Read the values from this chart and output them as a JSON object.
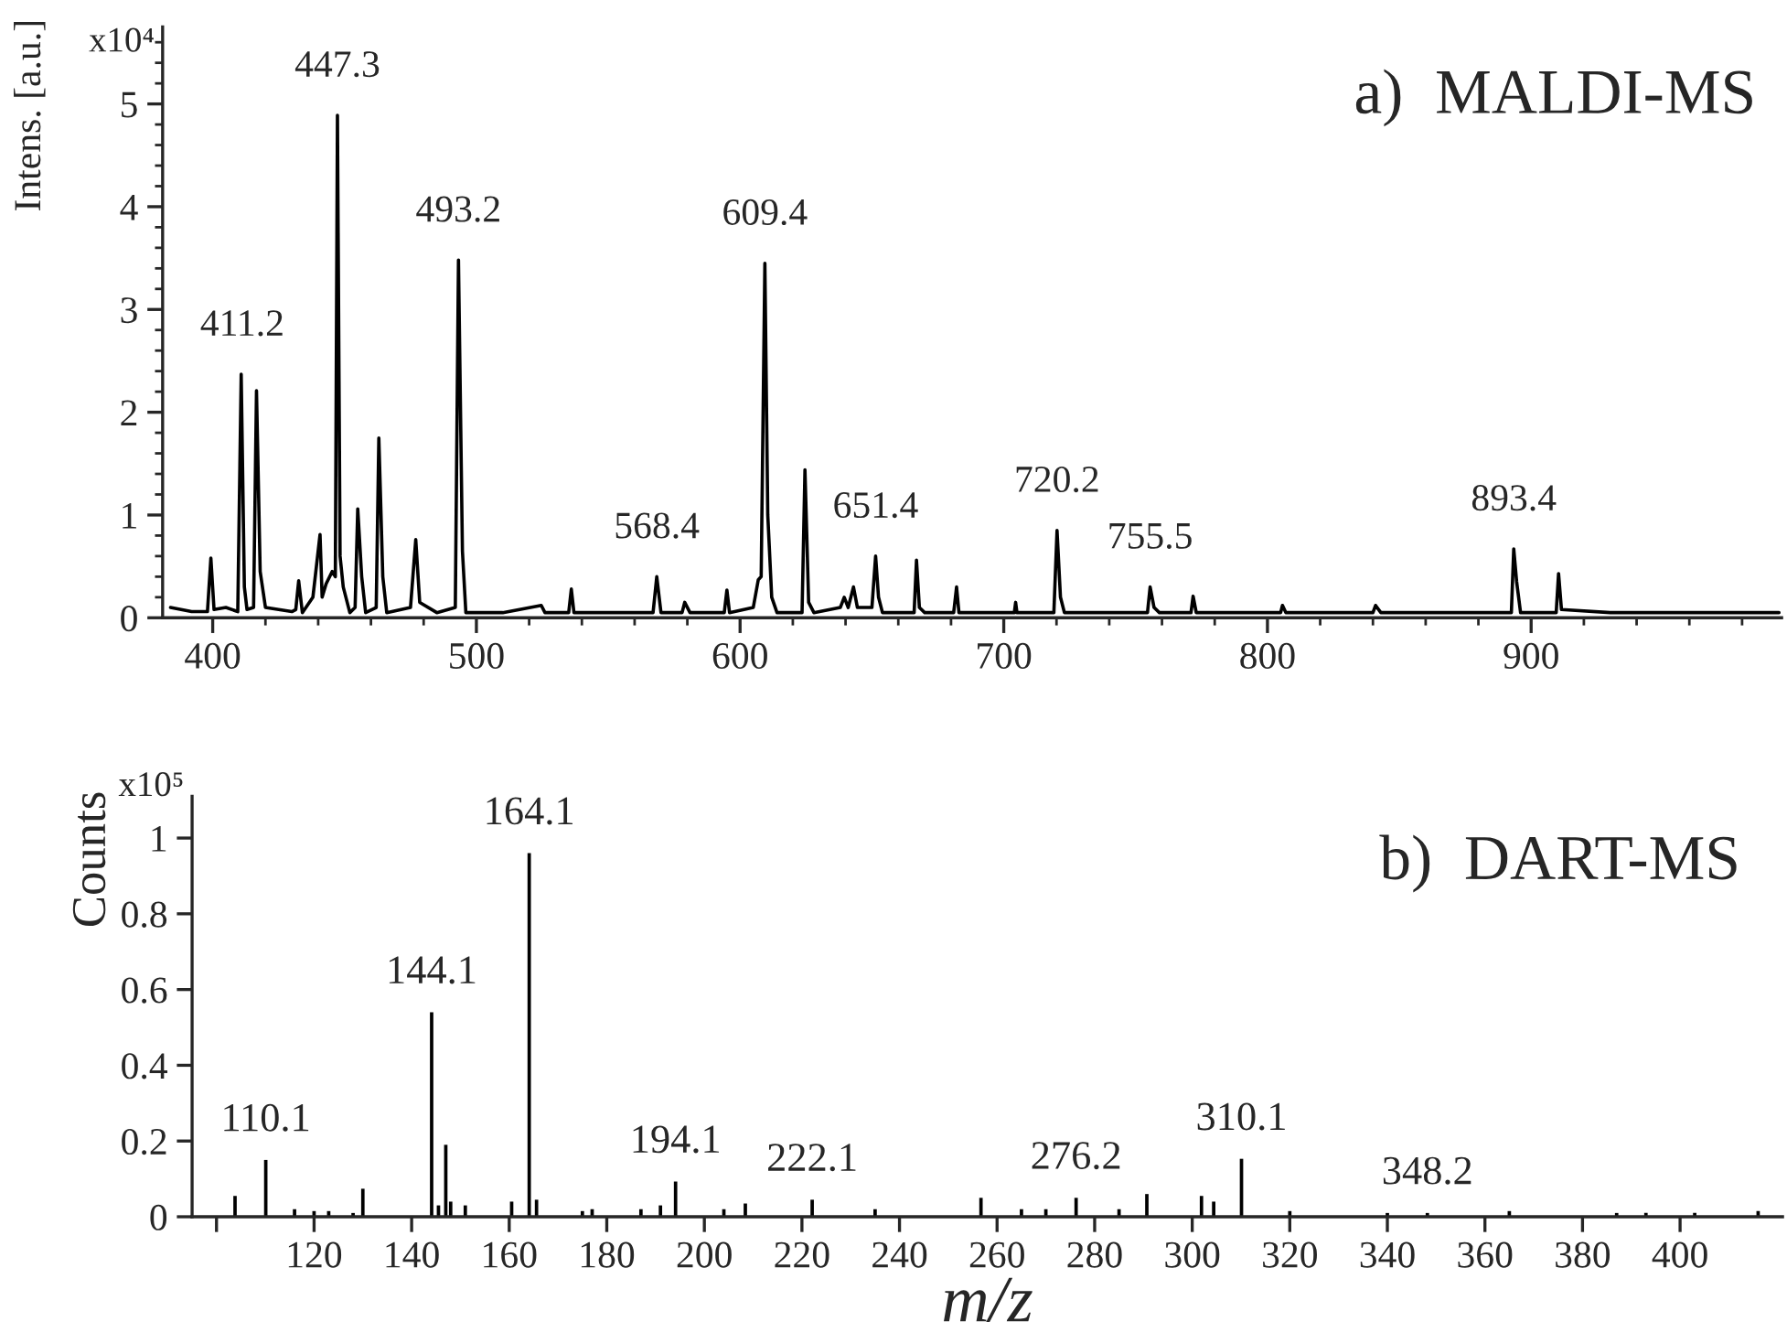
{
  "chart_data": [
    {
      "type": "line",
      "title": "a)  MALDI-MS",
      "ylabel": "Intens. [a.u.]",
      "color": "#000000",
      "x": [
        384,
        392,
        398,
        399.3,
        400.5,
        405,
        409.5,
        410.8,
        412,
        413,
        415.5,
        416.6,
        418,
        420,
        430,
        431.5,
        432.6,
        434,
        438,
        440.7,
        441.5,
        443,
        445.3,
        446.5,
        447.3,
        448.3,
        449.5,
        452,
        454,
        455,
        456.5,
        458,
        462,
        463,
        464.5,
        466,
        475,
        477,
        478.5,
        485,
        492,
        493.2,
        494.7,
        496,
        510,
        524.6,
        526,
        535,
        536,
        537,
        555,
        567,
        568.4,
        570,
        578,
        579,
        581,
        594,
        595,
        596,
        605,
        606.9,
        608,
        609.4,
        610.5,
        612,
        614,
        623.5,
        624.6,
        626,
        628,
        638,
        639.5,
        641,
        643,
        644.5,
        650,
        651.4,
        652.5,
        654,
        666,
        666.9,
        668,
        670,
        681,
        682.1,
        683,
        704,
        704.5,
        705,
        719,
        720.2,
        721.5,
        723,
        754.5,
        755.5,
        757,
        759,
        771,
        771.8,
        773,
        805,
        805.7,
        807,
        840,
        841,
        843,
        892.5,
        893.4,
        894.5,
        896,
        909.5,
        910.4,
        911.5,
        930,
        960,
        994
      ],
      "values": [
        0.1,
        0.06,
        0.06,
        0.58,
        0.08,
        0.1,
        0.06,
        2.37,
        0.3,
        0.08,
        0.1,
        2.21,
        0.45,
        0.1,
        0.06,
        0.08,
        0.36,
        0.05,
        0.2,
        0.81,
        0.2,
        0.33,
        0.45,
        0.4,
        4.89,
        0.6,
        0.3,
        0.05,
        0.1,
        1.06,
        0.4,
        0.05,
        0.1,
        1.75,
        0.4,
        0.05,
        0.1,
        0.76,
        0.15,
        0.05,
        0.1,
        3.48,
        0.65,
        0.05,
        0.05,
        0.12,
        0.05,
        0.05,
        0.28,
        0.05,
        0.05,
        0.05,
        0.4,
        0.05,
        0.05,
        0.15,
        0.05,
        0.05,
        0.27,
        0.05,
        0.1,
        0.37,
        0.4,
        3.45,
        1.0,
        0.2,
        0.05,
        0.05,
        1.44,
        0.15,
        0.05,
        0.1,
        0.2,
        0.1,
        0.3,
        0.1,
        0.1,
        0.6,
        0.2,
        0.05,
        0.05,
        0.56,
        0.1,
        0.05,
        0.05,
        0.3,
        0.05,
        0.05,
        0.15,
        0.05,
        0.05,
        0.85,
        0.2,
        0.05,
        0.05,
        0.3,
        0.1,
        0.05,
        0.05,
        0.21,
        0.05,
        0.05,
        0.12,
        0.05,
        0.05,
        0.12,
        0.05,
        0.05,
        0.67,
        0.35,
        0.05,
        0.05,
        0.43,
        0.08,
        0.05,
        0.05,
        0.05
      ],
      "xlim": [
        381,
        995
      ],
      "ylim": [
        0,
        5.75
      ],
      "xticks": [
        400,
        500,
        600,
        700,
        800,
        900
      ],
      "yticks": [
        0,
        1,
        2,
        3,
        4,
        5
      ],
      "annotations": [
        "x10⁴",
        {
          "text": "411.2",
          "x": 411.2,
          "y": 2.37
        },
        {
          "text": "447.3",
          "x": 447.3,
          "y": 4.89
        },
        {
          "text": "493.2",
          "x": 493.2,
          "y": 3.48
        },
        {
          "text": "568.4",
          "x": 568.4,
          "y": 0.4
        },
        {
          "text": "609.4",
          "x": 609.4,
          "y": 3.45
        },
        {
          "text": "651.4",
          "x": 651.4,
          "y": 0.6
        },
        {
          "text": "720.2",
          "x": 720.2,
          "y": 0.85
        },
        {
          "text": "755.5",
          "x": 755.5,
          "y": 0.3
        },
        {
          "text": "893.4",
          "x": 893.4,
          "y": 0.67
        }
      ]
    },
    {
      "type": "bar",
      "title": "b)  DART-MS",
      "ylabel": "Counts",
      "xlabel": "m/z",
      "color": "#000000",
      "x": [
        103.8,
        110.1,
        116,
        120,
        123,
        128,
        130,
        144.1,
        145.5,
        147,
        148,
        151,
        160.5,
        164.1,
        165.6,
        175,
        177,
        187,
        191,
        194.1,
        204,
        208.4,
        222.1,
        235,
        256.7,
        265,
        270,
        276.2,
        285,
        290.7,
        301.9,
        304.4,
        310.1,
        320,
        340,
        348.2,
        365,
        387,
        393,
        403,
        416
      ],
      "values": [
        0.055,
        0.15,
        0.02,
        0.015,
        0.015,
        0.01,
        0.074,
        0.54,
        0.03,
        0.19,
        0.04,
        0.03,
        0.04,
        0.96,
        0.045,
        0.015,
        0.02,
        0.02,
        0.03,
        0.093,
        0.02,
        0.035,
        0.045,
        0.02,
        0.05,
        0.02,
        0.02,
        0.05,
        0.02,
        0.06,
        0.055,
        0.04,
        0.153,
        0.015,
        0.01,
        0.01,
        0.015,
        0.01,
        0.01,
        0.01,
        0.015
      ],
      "xlim": [
        95,
        421
      ],
      "ylim": [
        0,
        1.11
      ],
      "xticks": [
        {
          "value": 100,
          "label": null
        },
        120,
        140,
        160,
        180,
        200,
        220,
        240,
        260,
        280,
        300,
        320,
        340,
        360,
        380,
        400
      ],
      "yticks": [
        0,
        0.2,
        0.4,
        0.6,
        0.8,
        1
      ],
      "annotations": [
        "x10⁵",
        {
          "text": "110.1",
          "x": 110.1,
          "y": 0.15
        },
        {
          "text": "144.1",
          "x": 144.1,
          "y": 0.54
        },
        {
          "text": "164.1",
          "x": 164.1,
          "y": 0.96
        },
        {
          "text": "194.1",
          "x": 194.1,
          "y": 0.093
        },
        {
          "text": "222.1",
          "x": 222.1,
          "y": 0.045
        },
        {
          "text": "276.2",
          "x": 276.2,
          "y": 0.05
        },
        {
          "text": "310.1",
          "x": 310.1,
          "y": 0.153
        },
        {
          "text": "348.2",
          "x": 348.2,
          "y": 0.01
        }
      ]
    }
  ]
}
